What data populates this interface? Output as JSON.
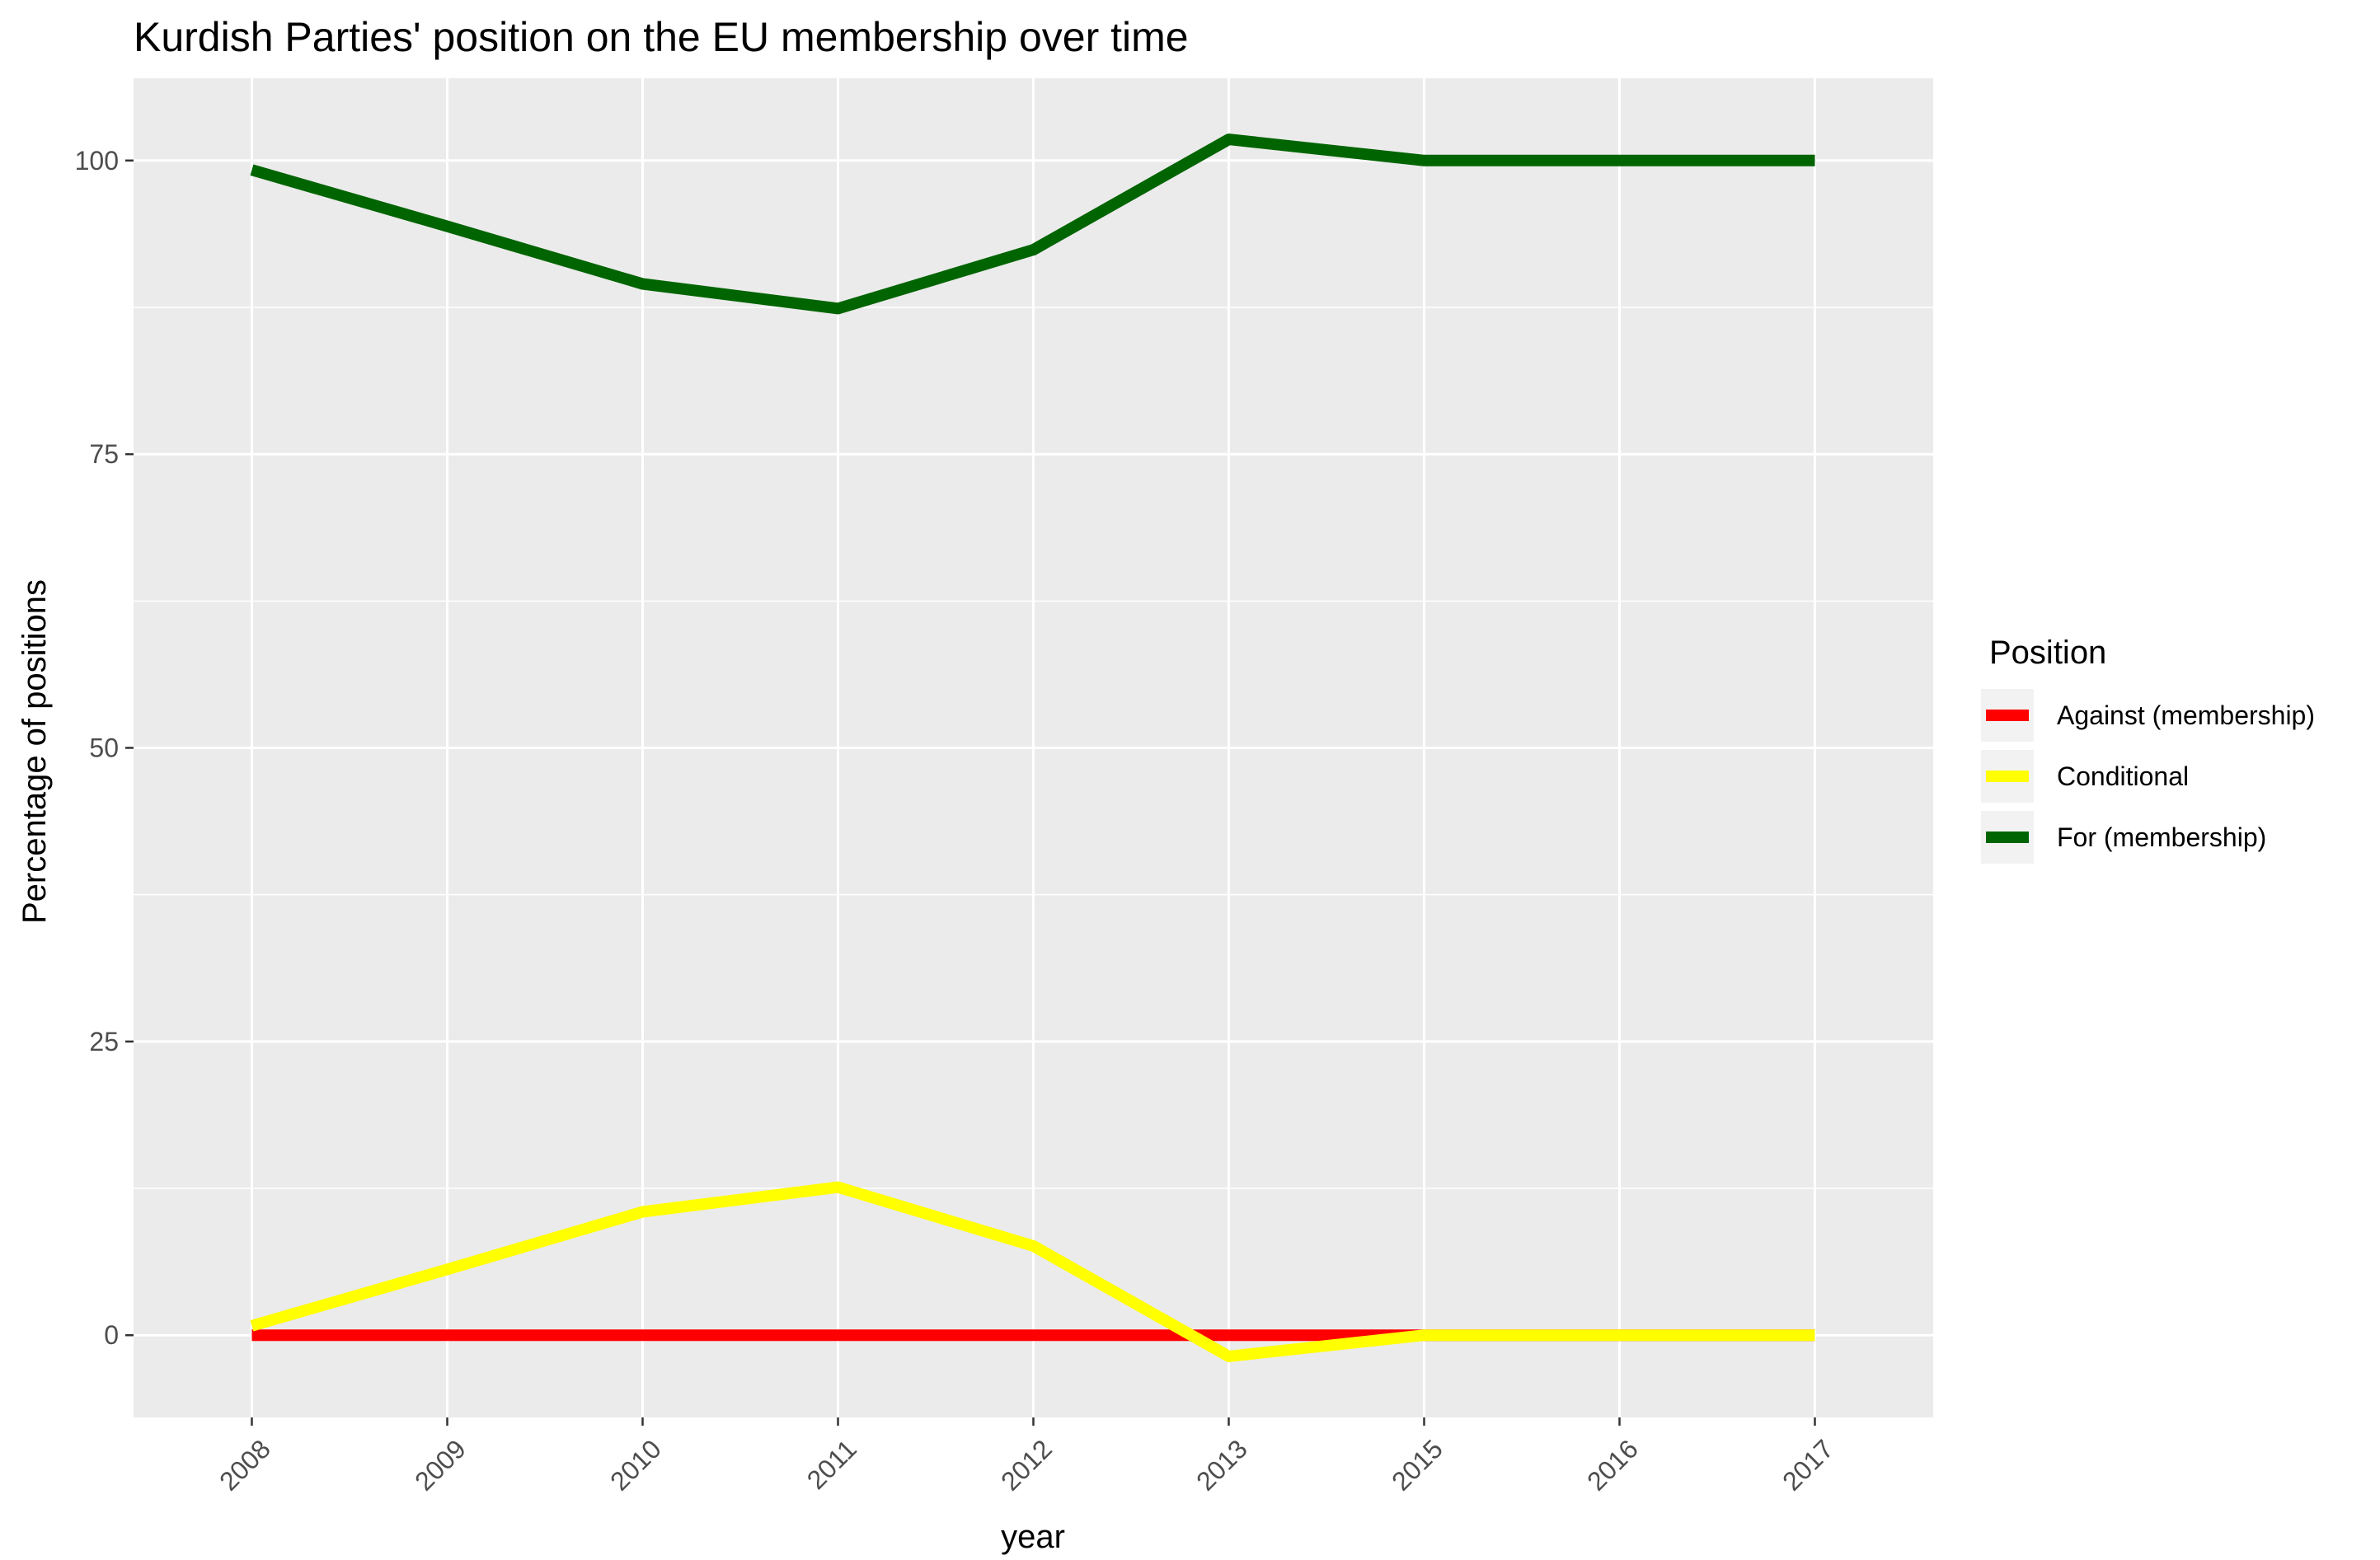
{
  "chart_data": {
    "type": "line",
    "title": "Kurdish Parties' position on the EU membership over time",
    "xlabel": "year",
    "ylabel": "Percentage of positions",
    "categories": [
      "2008",
      "2009",
      "2010",
      "2011",
      "2012",
      "2013",
      "2015",
      "2016",
      "2017"
    ],
    "yticks": [
      0,
      25,
      50,
      75,
      100
    ],
    "ylim": [
      -7,
      107
    ],
    "grid": true,
    "x_tick_rotation": "45 degrees",
    "legend": {
      "title": "Position",
      "placement": "right"
    },
    "series": [
      {
        "name": "Against (membership)",
        "color": "#ff0000",
        "values": [
          0,
          0,
          0,
          0,
          0,
          0,
          0,
          0,
          0
        ]
      },
      {
        "name": "Conditional",
        "color": "#ffff00",
        "values": [
          0.8,
          5.6,
          10.5,
          12.6,
          7.6,
          -1.8,
          0,
          0,
          0
        ]
      },
      {
        "name": "For (membership)",
        "color": "#006400",
        "values": [
          99.2,
          94.4,
          89.5,
          87.4,
          92.4,
          101.8,
          100,
          100,
          100
        ]
      }
    ]
  }
}
